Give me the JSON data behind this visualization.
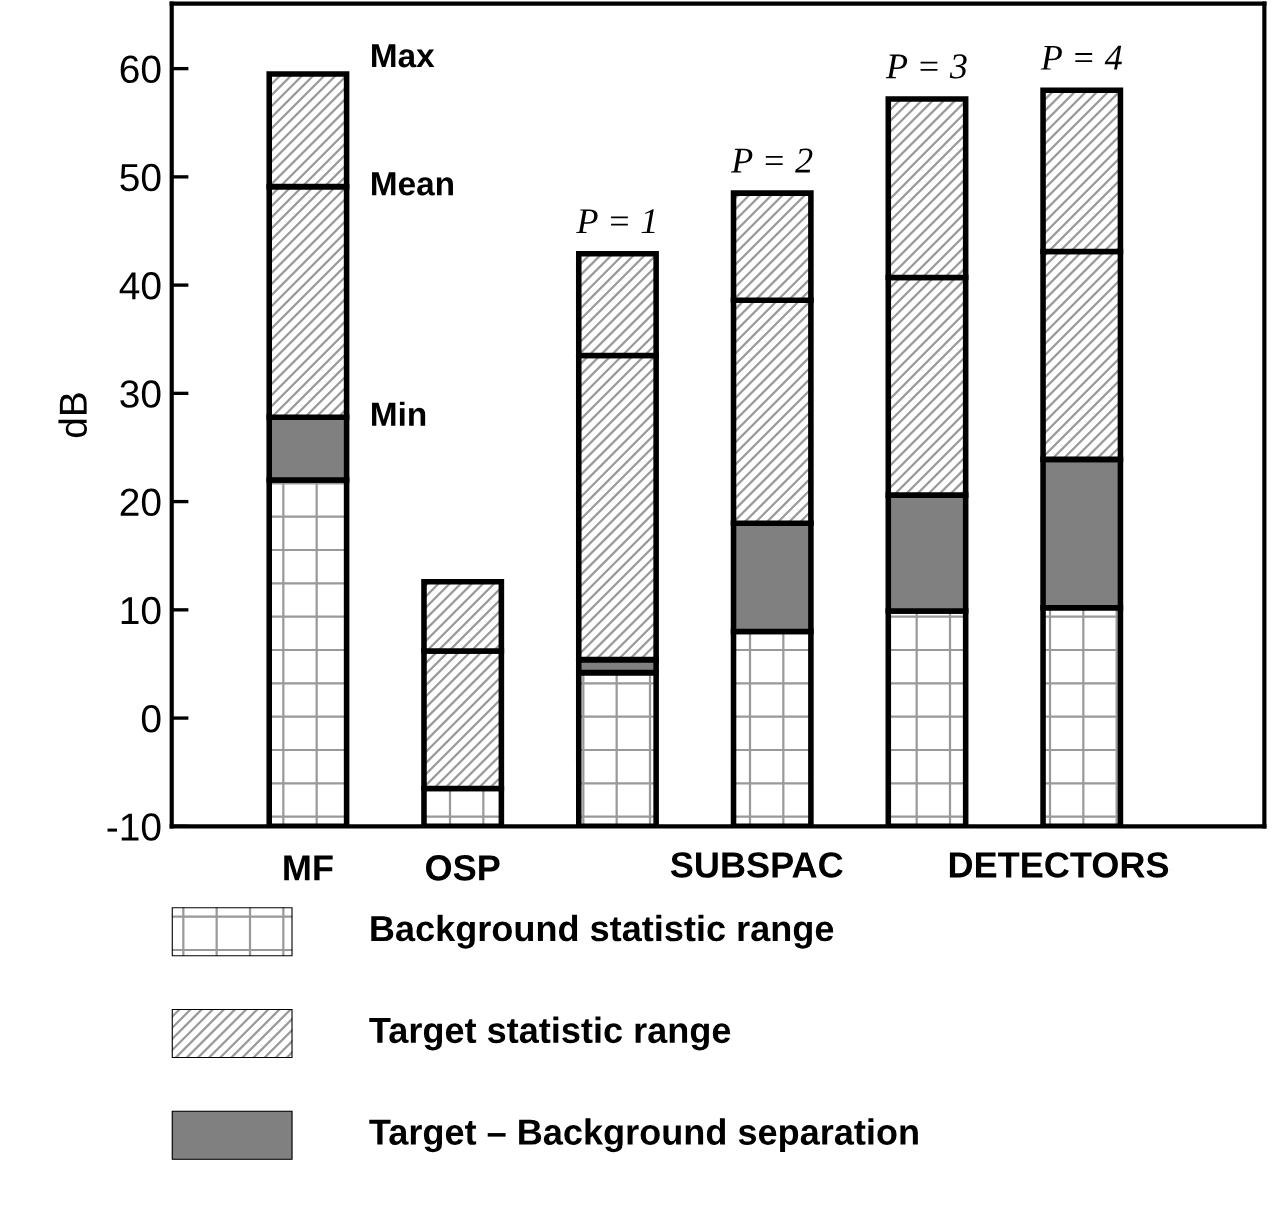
{
  "chart_data": {
    "type": "bar",
    "ylabel": "dB",
    "categories": [
      "MF",
      "OSP",
      null,
      null,
      null,
      null
    ],
    "series": [
      {
        "name": "Background statistic range",
        "color": "#000000",
        "base": [
          -10,
          -10,
          -10,
          -10,
          -10,
          -10
        ],
        "values": [
          32.0,
          3.5,
          14.2,
          18.0,
          19.9,
          20.2
        ]
      },
      {
        "name": "Target – Background separation",
        "color": "#808080",
        "base": [
          22.0,
          null,
          4.2,
          8.0,
          9.9,
          10.2
        ],
        "values": [
          5.8,
          null,
          1.2,
          10.0,
          10.7,
          13.7
        ]
      },
      {
        "name": "Target statistic range",
        "color": "#000000",
        "base": [
          27.8,
          -6.5,
          5.4,
          18.0,
          20.6,
          23.9
        ],
        "values": [
          21.3,
          12.7,
          28.1,
          20.6,
          20.1,
          19.2
        ]
      },
      {
        "color": "#000000",
        "base": [
          49.1,
          6.2,
          33.5,
          38.6,
          40.7,
          43.1
        ],
        "values": [
          10.4,
          6.4,
          9.4,
          9.9,
          16.5,
          14.9
        ]
      }
    ],
    "ylim": [
      -10,
      66
    ],
    "yticks": [
      -10,
      0,
      10,
      20,
      30,
      40,
      50,
      60
    ],
    "grid": false,
    "legend": "bottom",
    "annotations": [
      "Max",
      "Mean",
      "Min",
      "SUBSPAC",
      "DETECTORS",
      "P = 1",
      "P = 2",
      "P = 3",
      "P = 4"
    ]
  }
}
